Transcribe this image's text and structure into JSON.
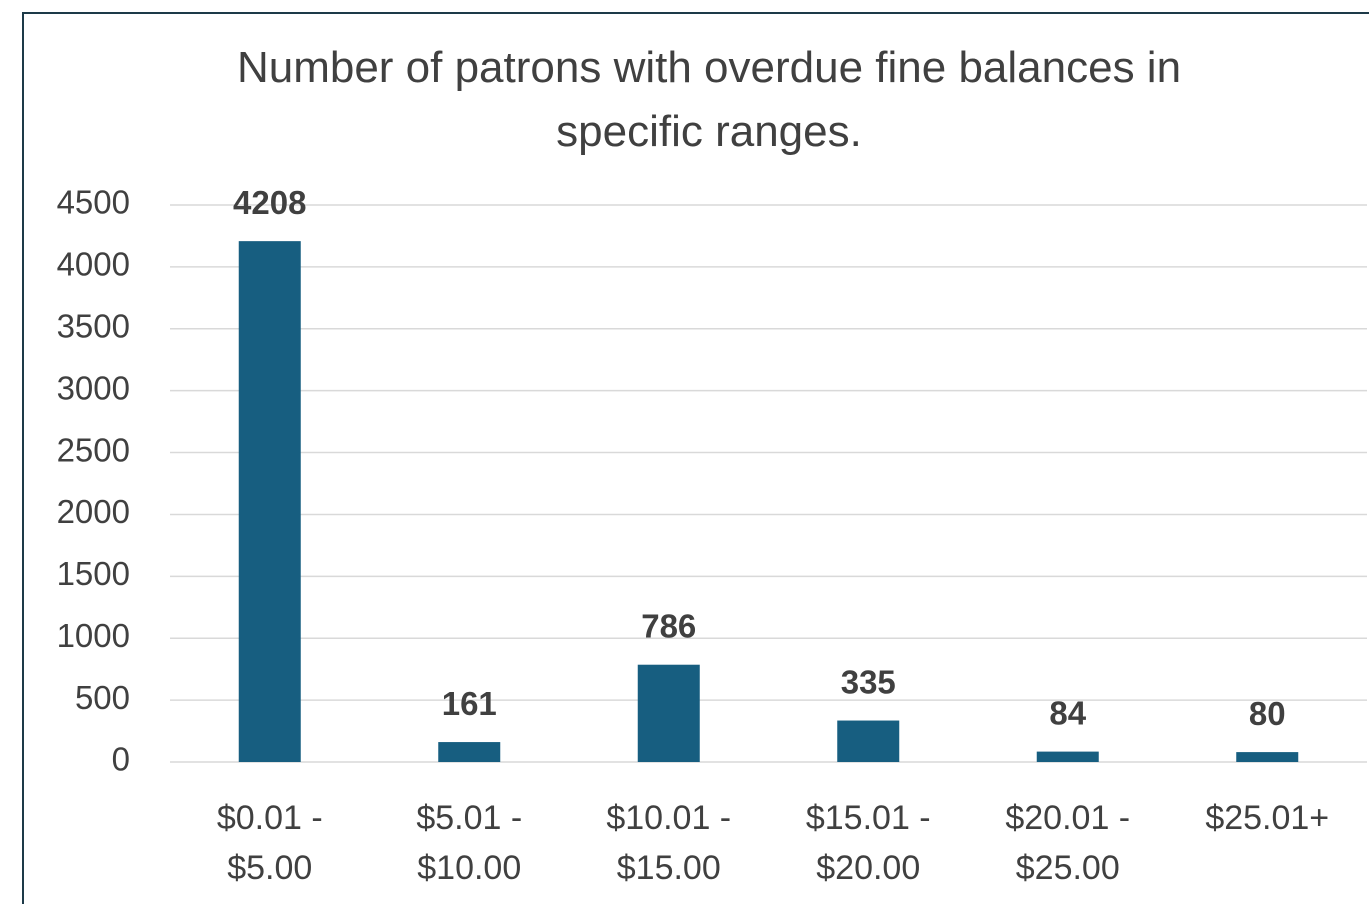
{
  "chart_data": {
    "type": "bar",
    "title": "Number of patrons with overdue fine balances in specific ranges.",
    "categories": [
      "$0.01 - $5.00",
      "$5.01 - $10.00",
      "$10.01 - $15.00",
      "$15.01 - $20.00",
      "$20.01 - $25.00",
      "$25.01+"
    ],
    "values": [
      4208,
      161,
      786,
      335,
      84,
      80
    ],
    "color": "#175e80",
    "ylim": [
      0,
      4500
    ],
    "yticks": [
      0,
      500,
      1000,
      1500,
      2000,
      2500,
      3000,
      3500,
      4000,
      4500
    ],
    "grid": true
  }
}
